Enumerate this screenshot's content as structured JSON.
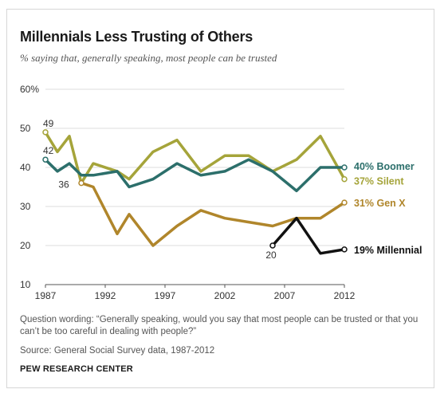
{
  "title": "Millennials Less Trusting of Others",
  "subtitle": "% saying that, generally speaking, most people can be trusted",
  "question_wording": "Question wording: “Generally speaking, would you say that most people can be trusted or that you can’t be too careful in dealing with people?”",
  "source": "Source: General Social Survey data, 1987-2012",
  "brand": "PEW RESEARCH CENTER",
  "colors": {
    "silent": "#a5a43a",
    "boomer": "#2c6f6b",
    "genx": "#b0862b",
    "millennial": "#111111",
    "grid": "#dedede"
  },
  "chart_data": {
    "type": "line",
    "title": "Millennials Less Trusting of Others",
    "subtitle": "% saying that, generally speaking, most people can be trusted",
    "xlim": [
      1987,
      2012
    ],
    "ylim": [
      10,
      60
    ],
    "x_ticks": [
      "1987",
      "1992",
      "1997",
      "2002",
      "2007",
      "2012"
    ],
    "y_ticks": [
      "60%",
      "50",
      "40",
      "30",
      "20",
      "10"
    ],
    "grid": "horizontal",
    "series": [
      {
        "key": "silent",
        "end_label": "37% Silent",
        "points": [
          [
            1987,
            49
          ],
          [
            1988,
            44
          ],
          [
            1989,
            48
          ],
          [
            1990,
            36
          ],
          [
            1991,
            41
          ],
          [
            1993,
            39
          ],
          [
            1994,
            37
          ],
          [
            1996,
            44
          ],
          [
            1998,
            47
          ],
          [
            2000,
            39
          ],
          [
            2002,
            43
          ],
          [
            2004,
            43
          ],
          [
            2006,
            39
          ],
          [
            2008,
            42
          ],
          [
            2010,
            48
          ],
          [
            2012,
            37
          ]
        ]
      },
      {
        "key": "boomer",
        "end_label": "40% Boomer",
        "points": [
          [
            1987,
            42
          ],
          [
            1988,
            39
          ],
          [
            1989,
            41
          ],
          [
            1990,
            38
          ],
          [
            1991,
            38
          ],
          [
            1993,
            39
          ],
          [
            1994,
            35
          ],
          [
            1996,
            37
          ],
          [
            1998,
            41
          ],
          [
            2000,
            38
          ],
          [
            2002,
            39
          ],
          [
            2004,
            42
          ],
          [
            2006,
            39
          ],
          [
            2008,
            34
          ],
          [
            2010,
            40
          ],
          [
            2012,
            40
          ]
        ]
      },
      {
        "key": "genx",
        "end_label": "31% Gen X",
        "points": [
          [
            1990,
            36
          ],
          [
            1991,
            35
          ],
          [
            1993,
            23
          ],
          [
            1994,
            28
          ],
          [
            1996,
            20
          ],
          [
            1998,
            25
          ],
          [
            2000,
            29
          ],
          [
            2002,
            27
          ],
          [
            2004,
            26
          ],
          [
            2006,
            25
          ],
          [
            2008,
            27
          ],
          [
            2010,
            27
          ],
          [
            2012,
            31
          ]
        ]
      },
      {
        "key": "millennial",
        "end_label": "19% Millennial",
        "points": [
          [
            2006,
            20
          ],
          [
            2008,
            27
          ],
          [
            2010,
            18
          ],
          [
            2012,
            19
          ]
        ]
      }
    ],
    "annotations": [
      {
        "text": "49",
        "x": 1987,
        "y": 49
      },
      {
        "text": "42",
        "x": 1987,
        "y": 42
      },
      {
        "text": "36",
        "x": 1990,
        "y": 36
      },
      {
        "text": "20",
        "x": 2006,
        "y": 20
      }
    ]
  }
}
